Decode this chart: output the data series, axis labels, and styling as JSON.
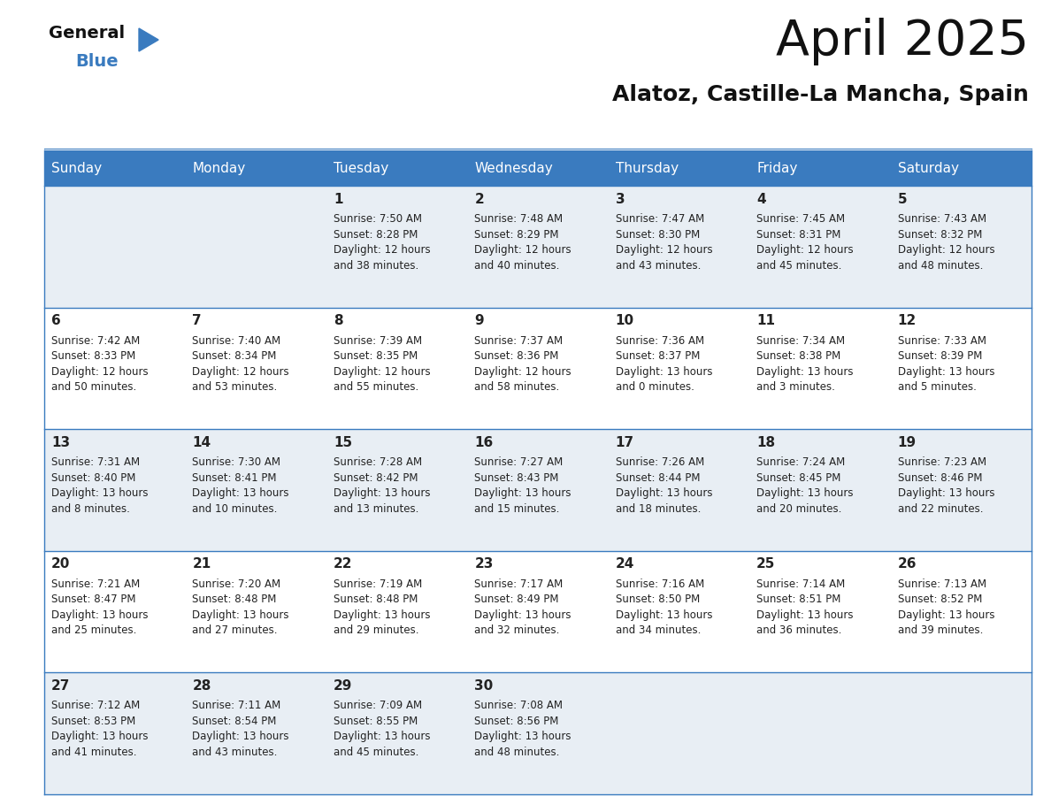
{
  "title": "April 2025",
  "subtitle": "Alatoz, Castille-La Mancha, Spain",
  "header_bg": "#3a7bbf",
  "header_text": "#ffffff",
  "day_names": [
    "Sunday",
    "Monday",
    "Tuesday",
    "Wednesday",
    "Thursday",
    "Friday",
    "Saturday"
  ],
  "row_bg_light": "#e8eef4",
  "row_bg_white": "#ffffff",
  "cell_text_color": "#222222",
  "grid_color": "#3a7bbf",
  "calendar": [
    [
      {
        "day": "",
        "info": ""
      },
      {
        "day": "",
        "info": ""
      },
      {
        "day": "1",
        "info": "Sunrise: 7:50 AM\nSunset: 8:28 PM\nDaylight: 12 hours\nand 38 minutes."
      },
      {
        "day": "2",
        "info": "Sunrise: 7:48 AM\nSunset: 8:29 PM\nDaylight: 12 hours\nand 40 minutes."
      },
      {
        "day": "3",
        "info": "Sunrise: 7:47 AM\nSunset: 8:30 PM\nDaylight: 12 hours\nand 43 minutes."
      },
      {
        "day": "4",
        "info": "Sunrise: 7:45 AM\nSunset: 8:31 PM\nDaylight: 12 hours\nand 45 minutes."
      },
      {
        "day": "5",
        "info": "Sunrise: 7:43 AM\nSunset: 8:32 PM\nDaylight: 12 hours\nand 48 minutes."
      }
    ],
    [
      {
        "day": "6",
        "info": "Sunrise: 7:42 AM\nSunset: 8:33 PM\nDaylight: 12 hours\nand 50 minutes."
      },
      {
        "day": "7",
        "info": "Sunrise: 7:40 AM\nSunset: 8:34 PM\nDaylight: 12 hours\nand 53 minutes."
      },
      {
        "day": "8",
        "info": "Sunrise: 7:39 AM\nSunset: 8:35 PM\nDaylight: 12 hours\nand 55 minutes."
      },
      {
        "day": "9",
        "info": "Sunrise: 7:37 AM\nSunset: 8:36 PM\nDaylight: 12 hours\nand 58 minutes."
      },
      {
        "day": "10",
        "info": "Sunrise: 7:36 AM\nSunset: 8:37 PM\nDaylight: 13 hours\nand 0 minutes."
      },
      {
        "day": "11",
        "info": "Sunrise: 7:34 AM\nSunset: 8:38 PM\nDaylight: 13 hours\nand 3 minutes."
      },
      {
        "day": "12",
        "info": "Sunrise: 7:33 AM\nSunset: 8:39 PM\nDaylight: 13 hours\nand 5 minutes."
      }
    ],
    [
      {
        "day": "13",
        "info": "Sunrise: 7:31 AM\nSunset: 8:40 PM\nDaylight: 13 hours\nand 8 minutes."
      },
      {
        "day": "14",
        "info": "Sunrise: 7:30 AM\nSunset: 8:41 PM\nDaylight: 13 hours\nand 10 minutes."
      },
      {
        "day": "15",
        "info": "Sunrise: 7:28 AM\nSunset: 8:42 PM\nDaylight: 13 hours\nand 13 minutes."
      },
      {
        "day": "16",
        "info": "Sunrise: 7:27 AM\nSunset: 8:43 PM\nDaylight: 13 hours\nand 15 minutes."
      },
      {
        "day": "17",
        "info": "Sunrise: 7:26 AM\nSunset: 8:44 PM\nDaylight: 13 hours\nand 18 minutes."
      },
      {
        "day": "18",
        "info": "Sunrise: 7:24 AM\nSunset: 8:45 PM\nDaylight: 13 hours\nand 20 minutes."
      },
      {
        "day": "19",
        "info": "Sunrise: 7:23 AM\nSunset: 8:46 PM\nDaylight: 13 hours\nand 22 minutes."
      }
    ],
    [
      {
        "day": "20",
        "info": "Sunrise: 7:21 AM\nSunset: 8:47 PM\nDaylight: 13 hours\nand 25 minutes."
      },
      {
        "day": "21",
        "info": "Sunrise: 7:20 AM\nSunset: 8:48 PM\nDaylight: 13 hours\nand 27 minutes."
      },
      {
        "day": "22",
        "info": "Sunrise: 7:19 AM\nSunset: 8:48 PM\nDaylight: 13 hours\nand 29 minutes."
      },
      {
        "day": "23",
        "info": "Sunrise: 7:17 AM\nSunset: 8:49 PM\nDaylight: 13 hours\nand 32 minutes."
      },
      {
        "day": "24",
        "info": "Sunrise: 7:16 AM\nSunset: 8:50 PM\nDaylight: 13 hours\nand 34 minutes."
      },
      {
        "day": "25",
        "info": "Sunrise: 7:14 AM\nSunset: 8:51 PM\nDaylight: 13 hours\nand 36 minutes."
      },
      {
        "day": "26",
        "info": "Sunrise: 7:13 AM\nSunset: 8:52 PM\nDaylight: 13 hours\nand 39 minutes."
      }
    ],
    [
      {
        "day": "27",
        "info": "Sunrise: 7:12 AM\nSunset: 8:53 PM\nDaylight: 13 hours\nand 41 minutes."
      },
      {
        "day": "28",
        "info": "Sunrise: 7:11 AM\nSunset: 8:54 PM\nDaylight: 13 hours\nand 43 minutes."
      },
      {
        "day": "29",
        "info": "Sunrise: 7:09 AM\nSunset: 8:55 PM\nDaylight: 13 hours\nand 45 minutes."
      },
      {
        "day": "30",
        "info": "Sunrise: 7:08 AM\nSunset: 8:56 PM\nDaylight: 13 hours\nand 48 minutes."
      },
      {
        "day": "",
        "info": ""
      },
      {
        "day": "",
        "info": ""
      },
      {
        "day": "",
        "info": ""
      }
    ]
  ],
  "logo_text_general": "General",
  "logo_text_blue": "Blue",
  "logo_triangle_color": "#3a7bbf",
  "title_fontsize": 40,
  "subtitle_fontsize": 18,
  "header_fontsize": 11,
  "day_num_fontsize": 11,
  "info_fontsize": 8.5
}
